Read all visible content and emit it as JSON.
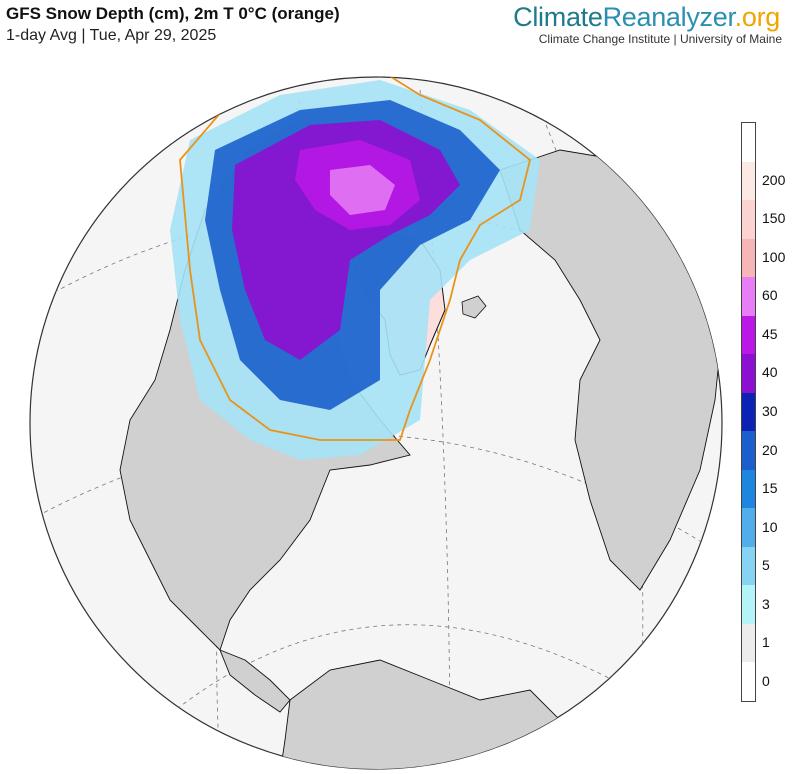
{
  "header": {
    "title": "GFS Snow Depth (cm), 2m T 0°C (orange)",
    "subtitle": "1-day Avg | Tue, Apr 29, 2025"
  },
  "branding": {
    "part1": "Climate",
    "part2": "Reanalyzer",
    "part3": ".org",
    "tagline": "Climate Change Institute | University of Maine"
  },
  "map": {
    "projection": "orthographic globe, North Atlantic / Arctic view",
    "ocean_color": "#f5f5f5",
    "land_color": "#d0d0d0",
    "freezing_line_color": "#e8941a"
  },
  "legend": {
    "bins": [
      {
        "label": "0",
        "color": "#ffffff"
      },
      {
        "label": "1",
        "color": "#ececec"
      },
      {
        "label": "3",
        "color": "#b4f3f8"
      },
      {
        "label": "5",
        "color": "#86d3f3"
      },
      {
        "label": "10",
        "color": "#52aeea"
      },
      {
        "label": "15",
        "color": "#1e86de"
      },
      {
        "label": "20",
        "color": "#1b5fcc"
      },
      {
        "label": "30",
        "color": "#0b22b4"
      },
      {
        "label": "40",
        "color": "#8c10cf"
      },
      {
        "label": "45",
        "color": "#bb17e6"
      },
      {
        "label": "60",
        "color": "#e77ef5"
      },
      {
        "label": "100",
        "color": "#f7b5b8"
      },
      {
        "label": "150",
        "color": "#fbd4d2"
      },
      {
        "label": "200",
        "color": "#fde9e4"
      },
      {
        "label": "",
        "color": "#ffffff"
      }
    ]
  }
}
